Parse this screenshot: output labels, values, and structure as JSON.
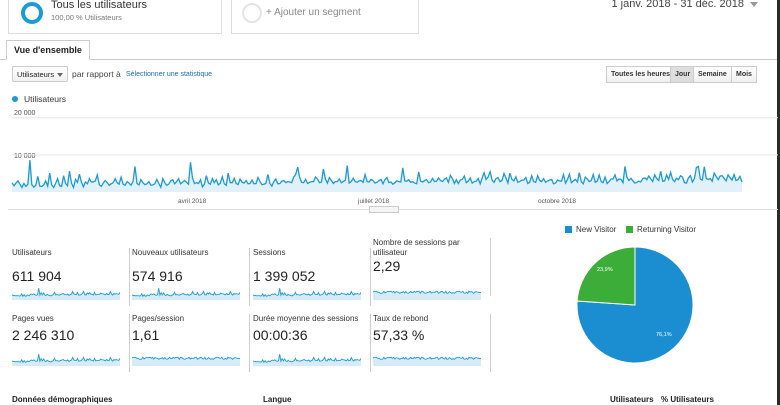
{
  "colors": {
    "accent": "#1a9ad6",
    "new_visitor": "#1a8ed1",
    "returning_visitor": "#3cad38"
  },
  "segments": {
    "primary": {
      "title": "Tous les utilisateurs",
      "subtitle": "100,00 % Utilisateurs"
    },
    "add_label": "+ Ajouter un segment"
  },
  "date_range": "1 janv. 2018 - 31 déc. 2018",
  "tab": "Vue d'ensemble",
  "controls": {
    "metric": "Utilisateurs",
    "compare_label": "par rapport à",
    "compare_link": "Sélectionner une statistique",
    "granularity": [
      "Toutes les heures",
      "Jour",
      "Semaine",
      "Mois"
    ],
    "granularity_active": "Jour"
  },
  "chart_data": {
    "type": "line",
    "series": [
      {
        "name": "Utilisateurs",
        "values": [
          2500,
          1700,
          2400,
          3000,
          2100,
          1200,
          2300,
          1500,
          2100,
          8600,
          2000,
          1300,
          1800,
          4200,
          1600,
          1500,
          1900,
          3000,
          1600,
          5100,
          1900,
          1200,
          2300,
          3600,
          1700,
          1500,
          4400,
          2300,
          1700,
          5600,
          2400,
          1200,
          3400,
          2600,
          4800,
          2700,
          1400,
          2700,
          2200,
          3600,
          2700,
          2700,
          3000,
          4600,
          2000,
          1500,
          2400,
          3100,
          2500,
          1800,
          2200,
          2500,
          3600,
          2500,
          2100,
          4000,
          2100,
          1800,
          2800,
          2400,
          1800,
          2800,
          6900,
          2300,
          1900,
          3300,
          2500,
          2000,
          2200,
          2800,
          1800,
          1900,
          2200,
          3400,
          2300,
          1300,
          3600,
          2500,
          1800,
          2100,
          3000,
          3300,
          2200,
          2800,
          3600,
          2200,
          2600,
          3100,
          2600,
          2100,
          8000,
          3800,
          2300,
          2500,
          2300,
          3300,
          1400,
          2100,
          4400,
          2400,
          2100,
          3600,
          2500,
          3300,
          1900,
          2400,
          4100,
          2200,
          1800,
          5100,
          2500,
          2500,
          3700,
          2300,
          2000,
          3500,
          2600,
          2400,
          3100,
          2200,
          2300,
          3200,
          2200,
          2300,
          3900,
          2800,
          2000,
          2100,
          2300,
          4700,
          2300,
          1600,
          2800,
          3500,
          2200,
          2300,
          2900,
          3100,
          2500,
          2800,
          2700,
          2500,
          4000,
          4700,
          6700,
          4000,
          2600,
          2500,
          3400,
          2300,
          2600,
          2800,
          2800,
          4000,
          3500,
          2500,
          2700,
          6200,
          3500,
          2400,
          3900,
          3100,
          2300,
          2800,
          2800,
          3500,
          2500,
          2800,
          3200,
          7100,
          2400,
          2800,
          3700,
          2800,
          2600,
          3000,
          3100,
          2600,
          4700,
          2800,
          2700,
          3400,
          3100,
          2400,
          2600,
          3100,
          3400,
          2200,
          3300,
          3900,
          2500,
          2700,
          2100,
          2500,
          3000,
          2800,
          2700,
          6500,
          3000,
          2900,
          3300,
          2600,
          2800,
          2400,
          2200,
          5400,
          2900,
          2700,
          3100,
          3300,
          2500,
          2700,
          3700,
          2800,
          2900,
          3800,
          3100,
          2800,
          3400,
          3800,
          2600,
          4500,
          3600,
          2300,
          3300,
          2300,
          3200,
          3400,
          4300,
          2500,
          2900,
          3800,
          2400,
          2800,
          2900,
          3600,
          2200,
          3700,
          5200,
          3400,
          4000,
          5500,
          3200,
          2600,
          3600,
          3900,
          2800,
          3100,
          5000,
          3800,
          2400,
          5100,
          3400,
          3000,
          4100,
          2600,
          2800,
          3200,
          3200,
          3900,
          2300,
          2600,
          4400,
          2800,
          2600,
          4400,
          3100,
          2800,
          3600,
          2600,
          3000,
          3200,
          3400,
          2200,
          2400,
          3200,
          3000,
          2900,
          4700,
          2400,
          3300,
          4800,
          2500,
          3000,
          3400,
          2700,
          5200,
          2800,
          2200,
          4000,
          3500,
          2800,
          3100,
          4700,
          2600,
          2900,
          4600,
          2800,
          2500,
          4000,
          2300,
          2800,
          3500,
          3500,
          4600,
          3000,
          3500,
          3400,
          2500,
          6900,
          4000,
          3100,
          3700,
          3000,
          2400,
          2600,
          2900,
          2700,
          3600,
          3800,
          3300,
          4300,
          3500,
          2800,
          4600,
          3600,
          3100,
          5600,
          2900,
          3000,
          4600,
          3400,
          5300,
          3400,
          2800,
          3700,
          3300,
          4400,
          4000,
          2500,
          2400,
          3800,
          4400,
          2700,
          3600,
          6600,
          6900,
          3500,
          3200,
          6800,
          3600,
          3400,
          3600,
          2900,
          5100,
          4200,
          3300,
          4300,
          4400,
          3700,
          3000,
          4600,
          3800,
          3200,
          4700,
          3100,
          3300,
          4200,
          2700
        ]
      }
    ],
    "y_ticks": [
      "20 000",
      "10 000"
    ],
    "x_ticks": [
      "avril 2018",
      "juillet 2018",
      "octobre 2018"
    ],
    "ylim": [
      0,
      21000
    ]
  },
  "scorecards": [
    {
      "label": "Utilisateurs",
      "value": "611 904"
    },
    {
      "label": "Nouveaux utilisateurs",
      "value": "574 916"
    },
    {
      "label": "Sessions",
      "value": "1 399 052"
    },
    {
      "label": "Nombre de sessions par utilisateur",
      "value": "2,29"
    },
    {
      "label": "Pages vues",
      "value": "2 246 310"
    },
    {
      "label": "Pages/session",
      "value": "1,61"
    },
    {
      "label": "Durée moyenne des sessions",
      "value": "00:00:36"
    },
    {
      "label": "Taux de rebond",
      "value": "57,33 %"
    }
  ],
  "pie": {
    "legend": [
      "New Visitor",
      "Returning Visitor"
    ],
    "slices": [
      {
        "name": "New Visitor",
        "value": 76.1,
        "label": "76,1%"
      },
      {
        "name": "Returning Visitor",
        "value": 23.9,
        "label": "23,9%"
      }
    ]
  },
  "bottom": {
    "demographics": "Données démographiques",
    "language": "Langue",
    "users": "Utilisateurs",
    "pct_users": "% Utilisateurs"
  }
}
